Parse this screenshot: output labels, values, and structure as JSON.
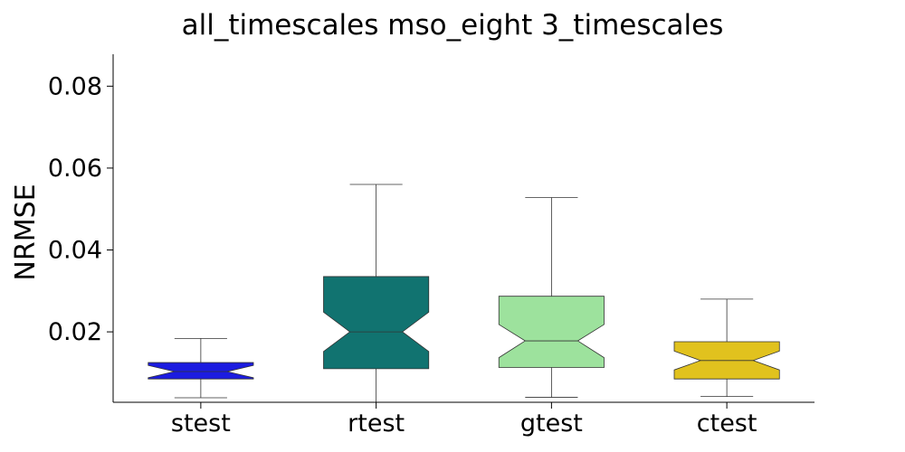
{
  "chart_data": {
    "type": "box",
    "title": "all_timescales mso_eight 3_timescales",
    "xlabel": "",
    "ylabel": "NRMSE",
    "ylim": [
      0.0028,
      0.0878
    ],
    "yticks": [
      0.02,
      0.04,
      0.06,
      0.08
    ],
    "ytick_labels": [
      "0.02",
      "0.04",
      "0.06",
      "0.08"
    ],
    "notched": true,
    "grid": false,
    "categories": [
      "stest",
      "rtest",
      "gtest",
      "ctest"
    ],
    "boxes": [
      {
        "label": "stest",
        "color": "#1c1ce0",
        "whisker_low": 0.0039,
        "q1": 0.0085,
        "notch_low": 0.0088,
        "median": 0.0103,
        "notch_high": 0.0118,
        "q3": 0.0125,
        "whisker_high": 0.0184
      },
      {
        "label": "rtest",
        "color": "#117370",
        "whisker_low": 0.0018,
        "q1": 0.011,
        "notch_low": 0.0152,
        "median": 0.02,
        "notch_high": 0.0248,
        "q3": 0.0335,
        "whisker_high": 0.056
      },
      {
        "label": "gtest",
        "color": "#9de29d",
        "whisker_low": 0.004,
        "q1": 0.0113,
        "notch_low": 0.0137,
        "median": 0.0178,
        "notch_high": 0.0218,
        "q3": 0.0287,
        "whisker_high": 0.0528
      },
      {
        "label": "ctest",
        "color": "#e1c21e",
        "whisker_low": 0.0042,
        "q1": 0.0085,
        "notch_low": 0.0107,
        "median": 0.013,
        "notch_high": 0.0153,
        "q3": 0.0176,
        "whisker_high": 0.028
      }
    ]
  }
}
